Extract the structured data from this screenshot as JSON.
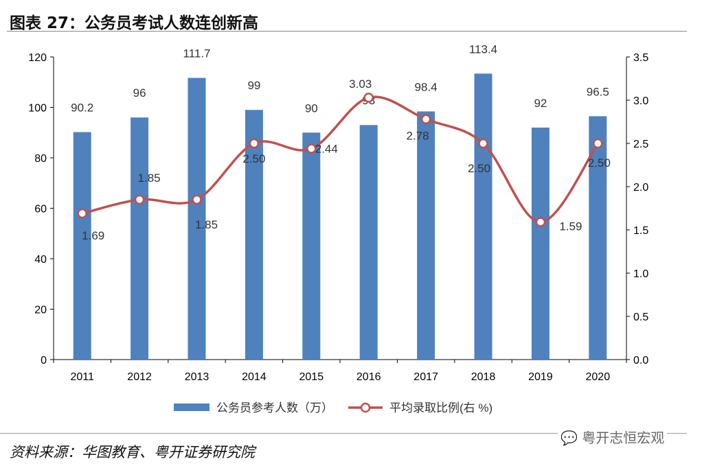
{
  "title": "图表 27：公务员考试人数连创新高",
  "source": "资料来源：华图教育、粤开证券研究院",
  "watermark": "粤开志恒宏观",
  "watermark_icon": "wechat-icon",
  "chart_data": {
    "type": "bar+line",
    "categories": [
      "2011",
      "2012",
      "2013",
      "2014",
      "2015",
      "2016",
      "2017",
      "2018",
      "2019",
      "2020"
    ],
    "series": [
      {
        "name": "公务员参考人数（万）",
        "type": "bar",
        "axis": "left",
        "color": "#4F81BD",
        "values": [
          90.2,
          96,
          111.7,
          99,
          90,
          93,
          98.4,
          113.4,
          92,
          96.5
        ],
        "labels": [
          "90.2",
          "96",
          "111.7",
          "99",
          "90",
          "93",
          "98.4",
          "113.4",
          "92",
          "96.5"
        ]
      },
      {
        "name": "平均录取比例(右 %)",
        "type": "line",
        "axis": "right",
        "color": "#C0504D",
        "values": [
          1.69,
          1.85,
          1.85,
          2.5,
          2.44,
          3.03,
          2.78,
          2.5,
          1.59,
          2.5
        ],
        "labels": [
          "1.69",
          "1.85",
          "1.85",
          "2.50",
          "2.44",
          "3.03",
          "2.78",
          "2.50",
          "1.59",
          "2.50"
        ]
      }
    ],
    "ylim_left": [
      0,
      120
    ],
    "yticks_left": [
      "0",
      "20",
      "40",
      "60",
      "80",
      "100",
      "120"
    ],
    "ylim_right": [
      0,
      3.5
    ],
    "yticks_right": [
      "0.0",
      "0.5",
      "1.0",
      "1.5",
      "2.0",
      "2.5",
      "3.0",
      "3.5"
    ],
    "legend": "bottom",
    "grid": false
  }
}
